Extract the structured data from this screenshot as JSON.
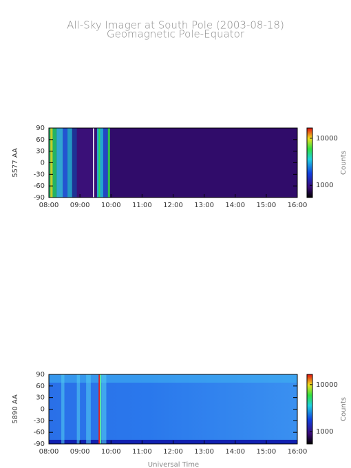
{
  "header": {
    "title": "All-Sky Imager at South Pole (2003-08-18)",
    "subtitle": "Geomagnetic Pole-Equator",
    "xlabel": "Universal Time"
  },
  "chart_data": [
    {
      "type": "heatmap",
      "ylabel": "5577 AA",
      "ylim": [
        -90,
        90
      ],
      "yticks": [
        90,
        60,
        30,
        0,
        -30,
        -60,
        -90
      ],
      "xlim": [
        "08:00",
        "16:00"
      ],
      "xticks": [
        "08:00",
        "09:00",
        "10:00",
        "11:00",
        "12:00",
        "13:00",
        "14:00",
        "15:00",
        "16:00"
      ],
      "colorbar": {
        "label": "Counts",
        "log": true,
        "lim": [
          550,
          16500
        ],
        "ticks": [
          10000,
          1000
        ]
      }
    },
    {
      "type": "heatmap",
      "ylabel": "5890 AA",
      "ylim": [
        -90,
        90
      ],
      "yticks": [
        90,
        60,
        30,
        0,
        -30,
        -60,
        -90
      ],
      "xlim": [
        "08:00",
        "16:00"
      ],
      "xticks": [
        "08:00",
        "09:00",
        "10:00",
        "11:00",
        "12:00",
        "13:00",
        "14:00",
        "15:00",
        "16:00"
      ],
      "colorbar": {
        "label": "Counts",
        "log": true,
        "lim": [
          550,
          16500
        ],
        "ticks": [
          10000,
          1000
        ]
      }
    }
  ]
}
